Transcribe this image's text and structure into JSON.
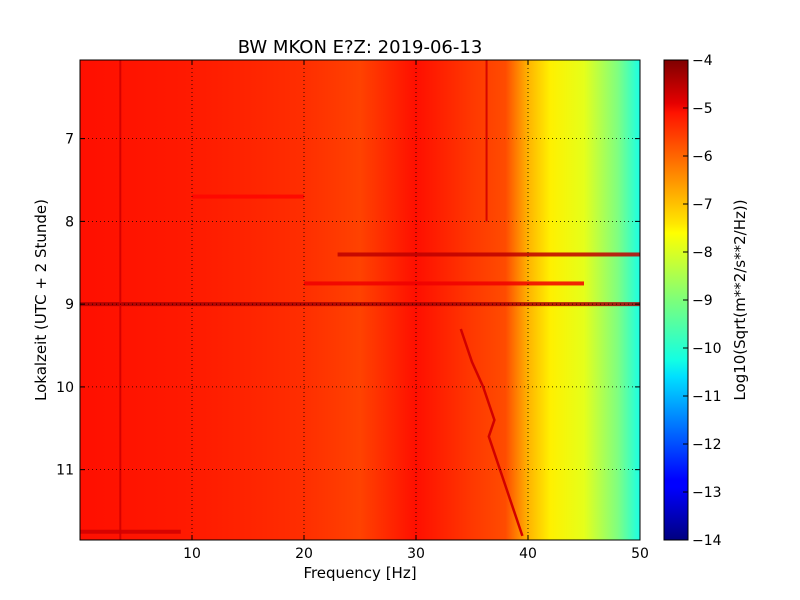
{
  "chart_data": {
    "type": "heatmap",
    "title": "BW MKON E?Z: 2019-06-13",
    "xlabel": "Frequency [Hz]",
    "ylabel": "Lokalzeit (UTC + 2 Stunde)",
    "colorbar_label": "Log10(Sqrt(m**2/s**2/Hz))",
    "xlim": [
      0,
      50
    ],
    "ylim": [
      11.85,
      6.05
    ],
    "xticks": [
      10,
      20,
      30,
      40,
      50
    ],
    "yticks": [
      7,
      8,
      9,
      10,
      11
    ],
    "colorbar_range": [
      -14,
      -4
    ],
    "colorbar_ticks": [
      -4,
      -5,
      -6,
      -7,
      -8,
      -9,
      -10,
      -11,
      -12,
      -13,
      -14
    ],
    "colormap": "jet",
    "grid": true,
    "frequency_profile": [
      {
        "x": 0,
        "z": -5.4
      },
      {
        "x": 10,
        "z": -5.5
      },
      {
        "x": 20,
        "z": -5.7
      },
      {
        "x": 25,
        "z": -5.9
      },
      {
        "x": 30,
        "z": -5.4
      },
      {
        "x": 35,
        "z": -5.8
      },
      {
        "x": 38,
        "z": -6.0
      },
      {
        "x": 40,
        "z": -7.0
      },
      {
        "x": 42,
        "z": -7.6
      },
      {
        "x": 45,
        "z": -8.0
      },
      {
        "x": 48,
        "z": -9.0
      },
      {
        "x": 50,
        "z": -10.0
      }
    ],
    "features": [
      {
        "type": "hband",
        "y": 8.4,
        "x0": 23,
        "x1": 50,
        "z": -4.6
      },
      {
        "type": "hband",
        "y": 9.0,
        "x0": 0,
        "x1": 50,
        "z": -4.4
      },
      {
        "type": "hband",
        "y": 8.75,
        "x0": 20,
        "x1": 45,
        "z": -5.1
      },
      {
        "type": "hband",
        "y": 7.7,
        "x0": 10,
        "x1": 20,
        "z": -5.3
      },
      {
        "type": "hband",
        "y": 11.75,
        "x0": 0,
        "x1": 9,
        "z": -4.8
      },
      {
        "type": "vband",
        "x": 3.6,
        "y0": 6.05,
        "y1": 11.85,
        "z": -4.8
      },
      {
        "type": "vband",
        "x": 36.3,
        "y0": 6.05,
        "y1": 8.0,
        "z": -4.8
      }
    ],
    "drift_line": [
      {
        "x": 34.0,
        "y": 9.3
      },
      {
        "x": 35.0,
        "y": 9.7
      },
      {
        "x": 36.0,
        "y": 10.0
      },
      {
        "x": 37.0,
        "y": 10.4
      },
      {
        "x": 36.5,
        "y": 10.6
      },
      {
        "x": 37.5,
        "y": 11.0
      },
      {
        "x": 38.5,
        "y": 11.4
      },
      {
        "x": 39.5,
        "y": 11.8
      }
    ]
  }
}
